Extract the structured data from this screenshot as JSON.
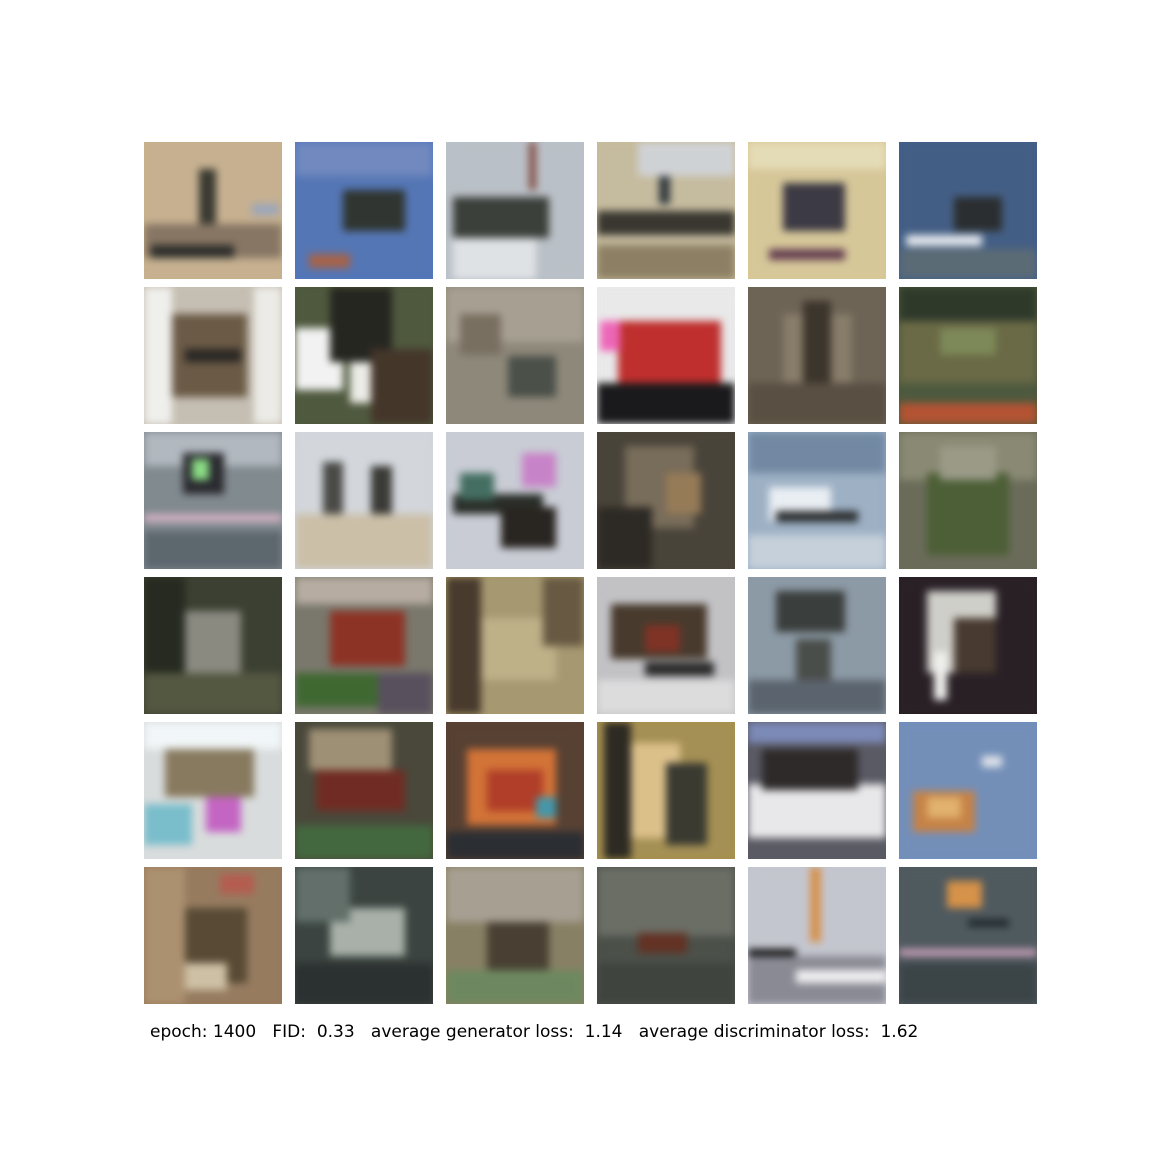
{
  "figure": {
    "background": "#ffffff",
    "grid": {
      "rows": 6,
      "cols": 6,
      "tiles": [
        {
          "bg": "#c9b08a",
          "blobs": [
            [
              "#3a3a30",
              0.4,
              0.2,
              0.12,
              0.5
            ],
            [
              "#8a7660",
              0.0,
              0.6,
              1.0,
              0.25
            ],
            [
              "#2e2e2a",
              0.05,
              0.75,
              0.6,
              0.1
            ],
            [
              "#9aa6c0",
              0.78,
              0.45,
              0.2,
              0.08
            ]
          ]
        },
        {
          "bg": "#4f76c0",
          "blobs": [
            [
              "#2f3530",
              0.35,
              0.35,
              0.45,
              0.3
            ],
            [
              "#6d89c8",
              0.0,
              0.0,
              1.0,
              0.25
            ],
            [
              "#b06040",
              0.1,
              0.82,
              0.3,
              0.1
            ]
          ]
        },
        {
          "bg": "#b9c0c8",
          "blobs": [
            [
              "#3c403a",
              0.05,
              0.4,
              0.7,
              0.3
            ],
            [
              "#dfe2e6",
              0.05,
              0.7,
              0.6,
              0.3
            ],
            [
              "#8a4a40",
              0.6,
              0.0,
              0.05,
              0.35
            ]
          ]
        },
        {
          "bg": "#c7bb9a",
          "blobs": [
            [
              "#3a372f",
              0.0,
              0.5,
              1.0,
              0.18
            ],
            [
              "#8f7f5e",
              0.0,
              0.75,
              1.0,
              0.25
            ],
            [
              "#2f3a40",
              0.45,
              0.05,
              0.08,
              0.4
            ],
            [
              "#cfd2d6",
              0.3,
              0.0,
              0.7,
              0.25
            ]
          ]
        },
        {
          "bg": "#d9c791",
          "blobs": [
            [
              "#3c3a45",
              0.25,
              0.3,
              0.45,
              0.35
            ],
            [
              "#e6dcb0",
              0.0,
              0.0,
              1.0,
              0.2
            ],
            [
              "#6a3d52",
              0.15,
              0.78,
              0.55,
              0.08
            ]
          ]
        },
        {
          "bg": "#3f5f8c",
          "blobs": [
            [
              "#2a2e30",
              0.4,
              0.4,
              0.35,
              0.25
            ],
            [
              "#e4e8ee",
              0.05,
              0.68,
              0.55,
              0.08
            ],
            [
              "#586b78",
              0.0,
              0.78,
              1.0,
              0.22
            ]
          ]
        },
        {
          "bg": "#c6beb0",
          "blobs": [
            [
              "#6d5a42",
              0.2,
              0.2,
              0.55,
              0.6
            ],
            [
              "#efefec",
              0.0,
              0.0,
              0.2,
              1.0
            ],
            [
              "#ecebe6",
              0.8,
              0.0,
              0.2,
              1.0
            ],
            [
              "#2a2723",
              0.3,
              0.45,
              0.4,
              0.1
            ]
          ]
        },
        {
          "bg": "#4e5a3a",
          "blobs": [
            [
              "#f2f2f2",
              0.0,
              0.3,
              0.35,
              0.45
            ],
            [
              "#262620",
              0.25,
              0.0,
              0.45,
              0.55
            ],
            [
              "#ecece6",
              0.4,
              0.55,
              0.25,
              0.3
            ],
            [
              "#473628",
              0.55,
              0.45,
              0.45,
              0.55
            ]
          ]
        },
        {
          "bg": "#8f8878",
          "blobs": [
            [
              "#a8a090",
              0.0,
              0.0,
              1.0,
              0.4
            ],
            [
              "#4a5048",
              0.45,
              0.5,
              0.35,
              0.3
            ],
            [
              "#7a6f5e",
              0.1,
              0.2,
              0.3,
              0.3
            ]
          ]
        },
        {
          "bg": "#e9e9ea",
          "blobs": [
            [
              "#d32a28",
              0.15,
              0.25,
              0.75,
              0.45
            ],
            [
              "#1a1a1c",
              0.0,
              0.7,
              1.0,
              0.3
            ],
            [
              "#ff60c0",
              0.02,
              0.25,
              0.15,
              0.22
            ]
          ]
        },
        {
          "bg": "#6f6453",
          "blobs": [
            [
              "#8a7c66",
              0.25,
              0.2,
              0.5,
              0.6
            ],
            [
              "#3d352a",
              0.4,
              0.1,
              0.2,
              0.8
            ],
            [
              "#5a4f40",
              0.0,
              0.7,
              1.0,
              0.3
            ]
          ]
        },
        {
          "bg": "#4c5a3a",
          "blobs": [
            [
              "#6a6a40",
              0.0,
              0.2,
              1.0,
              0.5
            ],
            [
              "#2d3a28",
              0.0,
              0.0,
              1.0,
              0.25
            ],
            [
              "#c2502a",
              0.0,
              0.85,
              1.0,
              0.15
            ],
            [
              "#7c8a50",
              0.3,
              0.3,
              0.4,
              0.2
            ]
          ]
        },
        {
          "bg": "#7f8a90",
          "blobs": [
            [
              "#b0b8c0",
              0.0,
              0.0,
              1.0,
              0.25
            ],
            [
              "#d8b0c8",
              0.0,
              0.6,
              1.0,
              0.06
            ],
            [
              "#2a2a30",
              0.28,
              0.15,
              0.3,
              0.3
            ],
            [
              "#7fe07a",
              0.35,
              0.2,
              0.12,
              0.15
            ],
            [
              "#5c6770",
              0.0,
              0.72,
              1.0,
              0.28
            ]
          ]
        },
        {
          "bg": "#d2d6dc",
          "blobs": [
            [
              "#4a4a46",
              0.2,
              0.22,
              0.15,
              0.55
            ],
            [
              "#3a3a36",
              0.55,
              0.25,
              0.15,
              0.6
            ],
            [
              "#cdbfa4",
              0.0,
              0.6,
              1.0,
              0.4
            ]
          ]
        },
        {
          "bg": "#c8ccd6",
          "blobs": [
            [
              "#2a2e28",
              0.05,
              0.45,
              0.65,
              0.15
            ],
            [
              "#2a2520",
              0.4,
              0.55,
              0.4,
              0.3
            ],
            [
              "#d080d0",
              0.55,
              0.15,
              0.25,
              0.25
            ],
            [
              "#3e7060",
              0.1,
              0.3,
              0.25,
              0.2
            ]
          ]
        },
        {
          "bg": "#4a4438",
          "blobs": [
            [
              "#7a6c56",
              0.2,
              0.1,
              0.5,
              0.6
            ],
            [
              "#2e2a24",
              0.0,
              0.55,
              0.4,
              0.45
            ],
            [
              "#9a7a50",
              0.5,
              0.3,
              0.25,
              0.3
            ]
          ]
        },
        {
          "bg": "#9ab0c8",
          "blobs": [
            [
              "#e8eef4",
              0.15,
              0.4,
              0.45,
              0.25
            ],
            [
              "#2a2e30",
              0.2,
              0.58,
              0.6,
              0.08
            ],
            [
              "#c4d0dc",
              0.0,
              0.75,
              1.0,
              0.25
            ],
            [
              "#6f8aa8",
              0.0,
              0.0,
              1.0,
              0.3
            ]
          ]
        },
        {
          "bg": "#6a6c56",
          "blobs": [
            [
              "#8a8a70",
              0.0,
              0.0,
              1.0,
              0.35
            ],
            [
              "#4a6030",
              0.2,
              0.3,
              0.6,
              0.6
            ],
            [
              "#9a9a84",
              0.3,
              0.1,
              0.4,
              0.25
            ]
          ]
        },
        {
          "bg": "#3c4030",
          "blobs": [
            [
              "#8a8a80",
              0.3,
              0.25,
              0.4,
              0.55
            ],
            [
              "#262a1e",
              0.0,
              0.0,
              0.3,
              1.0
            ],
            [
              "#54583e",
              0.0,
              0.7,
              1.0,
              0.3
            ]
          ]
        },
        {
          "bg": "#7a786a",
          "blobs": [
            [
              "#9a3020",
              0.25,
              0.25,
              0.55,
              0.4
            ],
            [
              "#b8aca0",
              0.0,
              0.0,
              1.0,
              0.2
            ],
            [
              "#3a6a2a",
              0.0,
              0.7,
              0.6,
              0.25
            ],
            [
              "#5a5060",
              0.6,
              0.7,
              0.4,
              0.3
            ]
          ]
        },
        {
          "bg": "#a8986a",
          "blobs": [
            [
              "#c0b080",
              0.25,
              0.3,
              0.55,
              0.45
            ],
            [
              "#4a3a2a",
              0.0,
              0.0,
              0.25,
              1.0
            ],
            [
              "#6a5a3e",
              0.7,
              0.0,
              0.3,
              0.5
            ]
          ]
        },
        {
          "bg": "#c2c2c6",
          "blobs": [
            [
              "#4a3a2a",
              0.1,
              0.2,
              0.7,
              0.4
            ],
            [
              "#8a3020",
              0.35,
              0.35,
              0.25,
              0.2
            ],
            [
              "#dcdcdc",
              0.0,
              0.75,
              1.0,
              0.25
            ],
            [
              "#2a2a2a",
              0.35,
              0.62,
              0.5,
              0.1
            ]
          ]
        },
        {
          "bg": "#8a9aa8",
          "blobs": [
            [
              "#3a3e3c",
              0.2,
              0.1,
              0.5,
              0.3
            ],
            [
              "#4a4e4a",
              0.35,
              0.45,
              0.25,
              0.3
            ],
            [
              "#5a6470",
              0.0,
              0.75,
              1.0,
              0.25
            ]
          ]
        },
        {
          "bg": "#2a2026",
          "blobs": [
            [
              "#cfcfc8",
              0.2,
              0.1,
              0.5,
              0.6
            ],
            [
              "#4a3a2e",
              0.4,
              0.3,
              0.3,
              0.4
            ],
            [
              "#f0f0ee",
              0.25,
              0.55,
              0.1,
              0.35
            ]
          ]
        },
        {
          "bg": "#d8dcdc",
          "blobs": [
            [
              "#8a7a5a",
              0.15,
              0.2,
              0.65,
              0.35
            ],
            [
              "#f0f6f8",
              0.0,
              0.0,
              1.0,
              0.2
            ],
            [
              "#70c0d0",
              0.0,
              0.6,
              0.35,
              0.3
            ],
            [
              "#d060d0",
              0.45,
              0.55,
              0.25,
              0.25
            ]
          ]
        },
        {
          "bg": "#4a4838",
          "blobs": [
            [
              "#7a2a20",
              0.15,
              0.35,
              0.65,
              0.3
            ],
            [
              "#a09070",
              0.1,
              0.05,
              0.6,
              0.3
            ],
            [
              "#3e6a3a",
              0.0,
              0.75,
              1.0,
              0.25
            ]
          ]
        },
        {
          "bg": "#5a4030",
          "blobs": [
            [
              "#e0702a",
              0.15,
              0.2,
              0.65,
              0.55
            ],
            [
              "#c03a20",
              0.3,
              0.35,
              0.4,
              0.3
            ],
            [
              "#2a2e34",
              0.0,
              0.8,
              1.0,
              0.2
            ],
            [
              "#3a9ab0",
              0.65,
              0.55,
              0.15,
              0.15
            ]
          ]
        },
        {
          "bg": "#a8904a",
          "blobs": [
            [
              "#e0c080",
              0.15,
              0.15,
              0.45,
              0.7
            ],
            [
              "#2e2a22",
              0.05,
              0.0,
              0.2,
              1.0
            ],
            [
              "#3a3a30",
              0.5,
              0.3,
              0.3,
              0.6
            ]
          ]
        },
        {
          "bg": "#5a5a66",
          "blobs": [
            [
              "#e8e8ea",
              0.0,
              0.45,
              1.0,
              0.4
            ],
            [
              "#2e2a2a",
              0.1,
              0.2,
              0.7,
              0.3
            ],
            [
              "#7a8ac0",
              0.0,
              0.0,
              1.0,
              0.15
            ]
          ]
        },
        {
          "bg": "#6f8fc0",
          "blobs": [
            [
              "#d0803a",
              0.1,
              0.5,
              0.45,
              0.3
            ],
            [
              "#e8b060",
              0.2,
              0.55,
              0.25,
              0.15
            ],
            [
              "#e0e4ec",
              0.6,
              0.25,
              0.15,
              0.08
            ]
          ]
        },
        {
          "bg": "#9a7a5a",
          "blobs": [
            [
              "#c05a4a",
              0.55,
              0.05,
              0.25,
              0.15
            ],
            [
              "#5a4a30",
              0.2,
              0.3,
              0.55,
              0.55
            ],
            [
              "#b0906a",
              0.0,
              0.0,
              0.3,
              1.0
            ],
            [
              "#d0c0a0",
              0.3,
              0.7,
              0.3,
              0.2
            ]
          ]
        },
        {
          "bg": "#3a4440",
          "blobs": [
            [
              "#a8b0a8",
              0.25,
              0.3,
              0.55,
              0.35
            ],
            [
              "#2a3030",
              0.0,
              0.7,
              1.0,
              0.3
            ],
            [
              "#60706a",
              0.0,
              0.0,
              0.4,
              0.4
            ]
          ]
        },
        {
          "bg": "#8a8060",
          "blobs": [
            [
              "#a8a090",
              0.0,
              0.0,
              1.0,
              0.4
            ],
            [
              "#4a4030",
              0.3,
              0.4,
              0.45,
              0.45
            ],
            [
              "#6a8a5a",
              0.0,
              0.75,
              1.0,
              0.25
            ]
          ]
        },
        {
          "bg": "#4a5048",
          "blobs": [
            [
              "#6a6e64",
              0.0,
              0.0,
              1.0,
              0.5
            ],
            [
              "#6a3020",
              0.3,
              0.48,
              0.35,
              0.15
            ],
            [
              "#3e443e",
              0.0,
              0.7,
              1.0,
              0.3
            ]
          ]
        },
        {
          "bg": "#c4c6d0",
          "blobs": [
            [
              "#e09040",
              0.45,
              0.0,
              0.08,
              0.55
            ],
            [
              "#0a0a0a",
              0.0,
              0.6,
              0.35,
              0.4
            ],
            [
              "#8a8a96",
              0.0,
              0.65,
              1.0,
              0.35
            ],
            [
              "#f0f0f2",
              0.35,
              0.75,
              0.65,
              0.1
            ]
          ]
        },
        {
          "bg": "#4e5a60",
          "blobs": [
            [
              "#e0903a",
              0.35,
              0.1,
              0.25,
              0.2
            ],
            [
              "#d0a0c0",
              0.0,
              0.6,
              1.0,
              0.05
            ],
            [
              "#3a4448",
              0.0,
              0.7,
              1.0,
              0.3
            ],
            [
              "#202a2e",
              0.5,
              0.38,
              0.3,
              0.06
            ]
          ]
        }
      ]
    },
    "caption": {
      "epoch_label": "epoch:",
      "epoch_value": "1400",
      "fid_label": "FID:",
      "fid_value": "0.33",
      "gen_loss_label": "average generator loss:",
      "gen_loss_value": "1.14",
      "disc_loss_label": "average discriminator loss:",
      "disc_loss_value": "1.62"
    }
  }
}
